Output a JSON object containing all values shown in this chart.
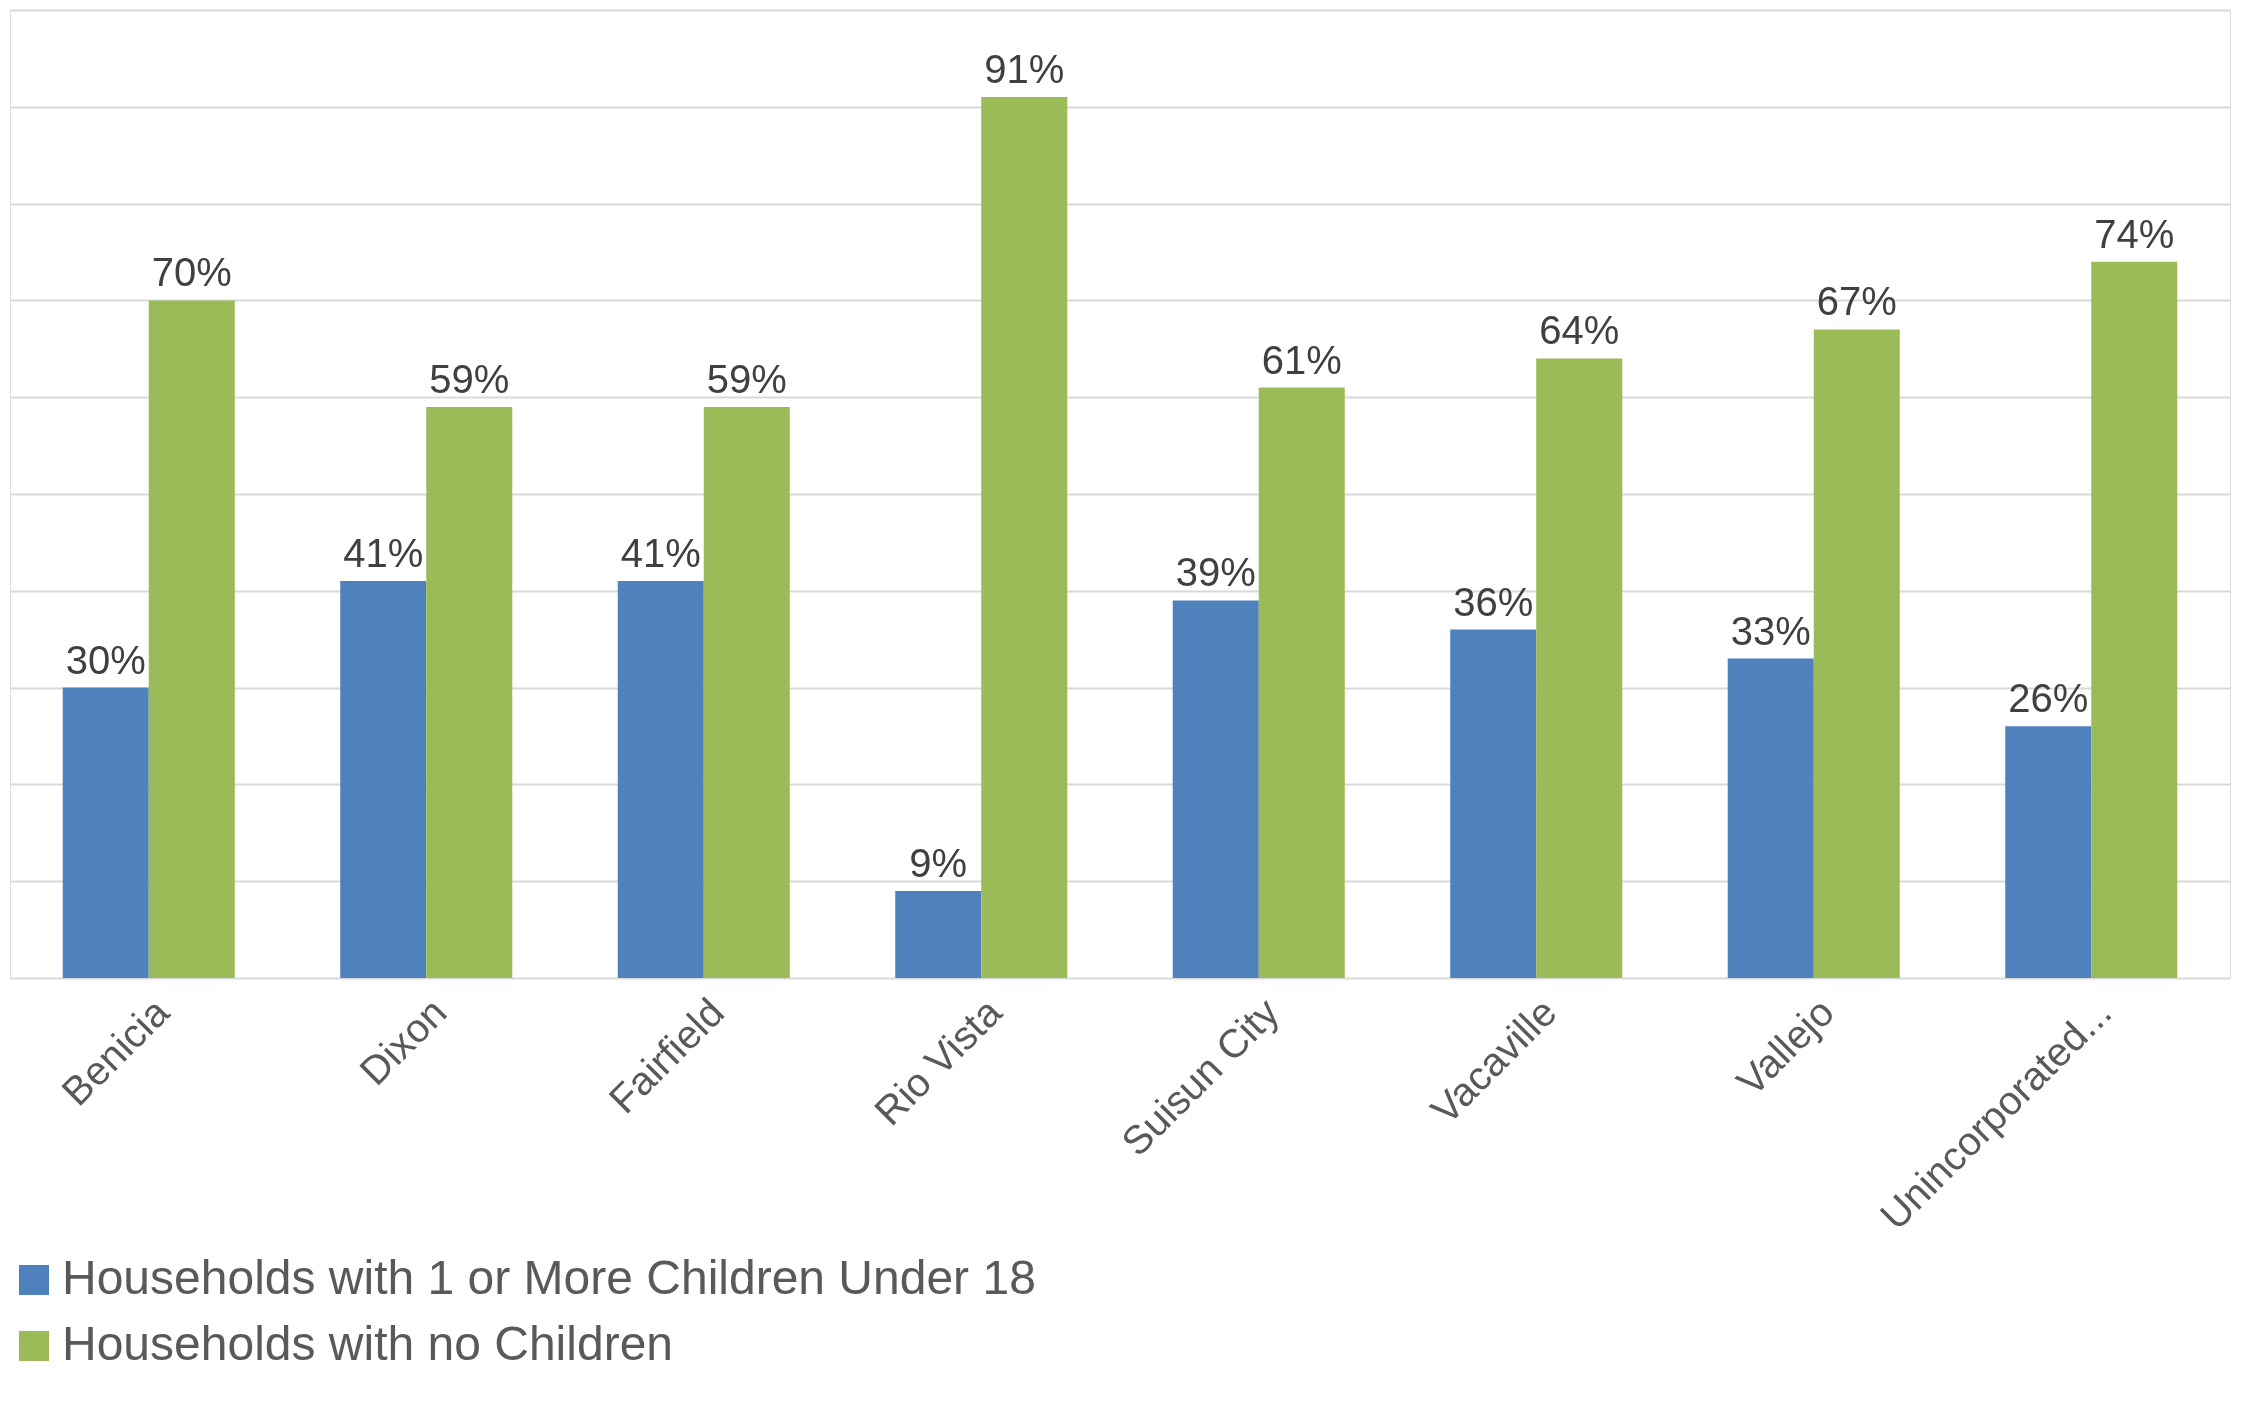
{
  "chart_data": {
    "type": "bar",
    "categories": [
      "Benicia",
      "Dixon",
      "Fairfield",
      "Rio Vista",
      "Suisun City",
      "Vacaville",
      "Vallejo",
      "Unincorporated..."
    ],
    "series": [
      {
        "name": "Households with 1 or More Children Under 18",
        "color": "#4f81bd",
        "values": [
          30,
          41,
          41,
          9,
          39,
          36,
          33,
          26
        ],
        "value_labels": [
          "30%",
          "41%",
          "41%",
          "9%",
          "39%",
          "36%",
          "33%",
          "26%"
        ]
      },
      {
        "name": "Households with no Children",
        "color": "#9bbb59",
        "values": [
          70,
          59,
          59,
          91,
          61,
          64,
          67,
          74
        ],
        "value_labels": [
          "70%",
          "59%",
          "59%",
          "91%",
          "61%",
          "64%",
          "67%",
          "74%"
        ]
      }
    ],
    "ylim": [
      0,
      100
    ],
    "yticks": [
      {
        "value": 0,
        "label": null
      },
      {
        "value": 10,
        "label": null
      },
      {
        "value": 20,
        "label": null
      },
      {
        "value": 30,
        "label": null
      },
      {
        "value": 40,
        "label": null
      },
      {
        "value": 50,
        "label": null
      },
      {
        "value": 60,
        "label": null
      },
      {
        "value": 70,
        "label": null
      },
      {
        "value": 80,
        "label": null
      },
      {
        "value": 90,
        "label": null
      },
      {
        "value": 100,
        "label": null
      }
    ],
    "tick_labels": "x",
    "grid": "y",
    "legend": "bottom"
  }
}
